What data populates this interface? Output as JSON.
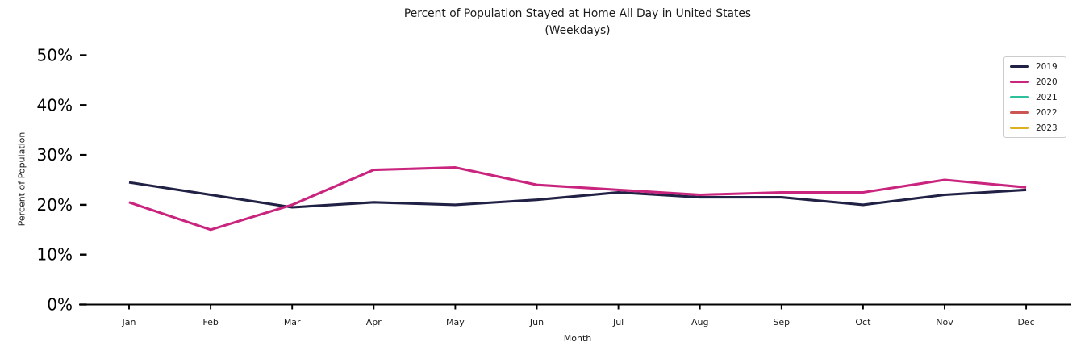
{
  "chart_data": {
    "type": "line",
    "title": "Percent of Population Stayed at Home All Day in United States",
    "subtitle": "(Weekdays)",
    "xlabel": "Month",
    "ylabel": "Percent of Population",
    "categories": [
      "Jan",
      "Feb",
      "Mar",
      "Apr",
      "May",
      "Jun",
      "Jul",
      "Aug",
      "Sep",
      "Oct",
      "Nov",
      "Dec"
    ],
    "y_ticks": [
      0,
      10,
      20,
      30,
      40,
      50
    ],
    "y_tick_suffix": "%",
    "ylim": [
      0,
      52
    ],
    "grid": false,
    "legend_position": "upper right",
    "axis_color": "#000000",
    "series": [
      {
        "name": "2019",
        "color": "#212145",
        "values": [
          24.5,
          22,
          19.5,
          20.5,
          20,
          21,
          22.5,
          21.5,
          21.5,
          20,
          22,
          23
        ]
      },
      {
        "name": "2020",
        "color": "#c9247e",
        "values": [
          20.5,
          15,
          20,
          27,
          27.5,
          24,
          23,
          22,
          22.5,
          22.5,
          25,
          23.5
        ]
      },
      {
        "name": "2021",
        "color": "#2ebf9b",
        "values": []
      },
      {
        "name": "2022",
        "color": "#cc5653",
        "values": []
      },
      {
        "name": "2023",
        "color": "#ddaf21",
        "values": []
      }
    ]
  }
}
